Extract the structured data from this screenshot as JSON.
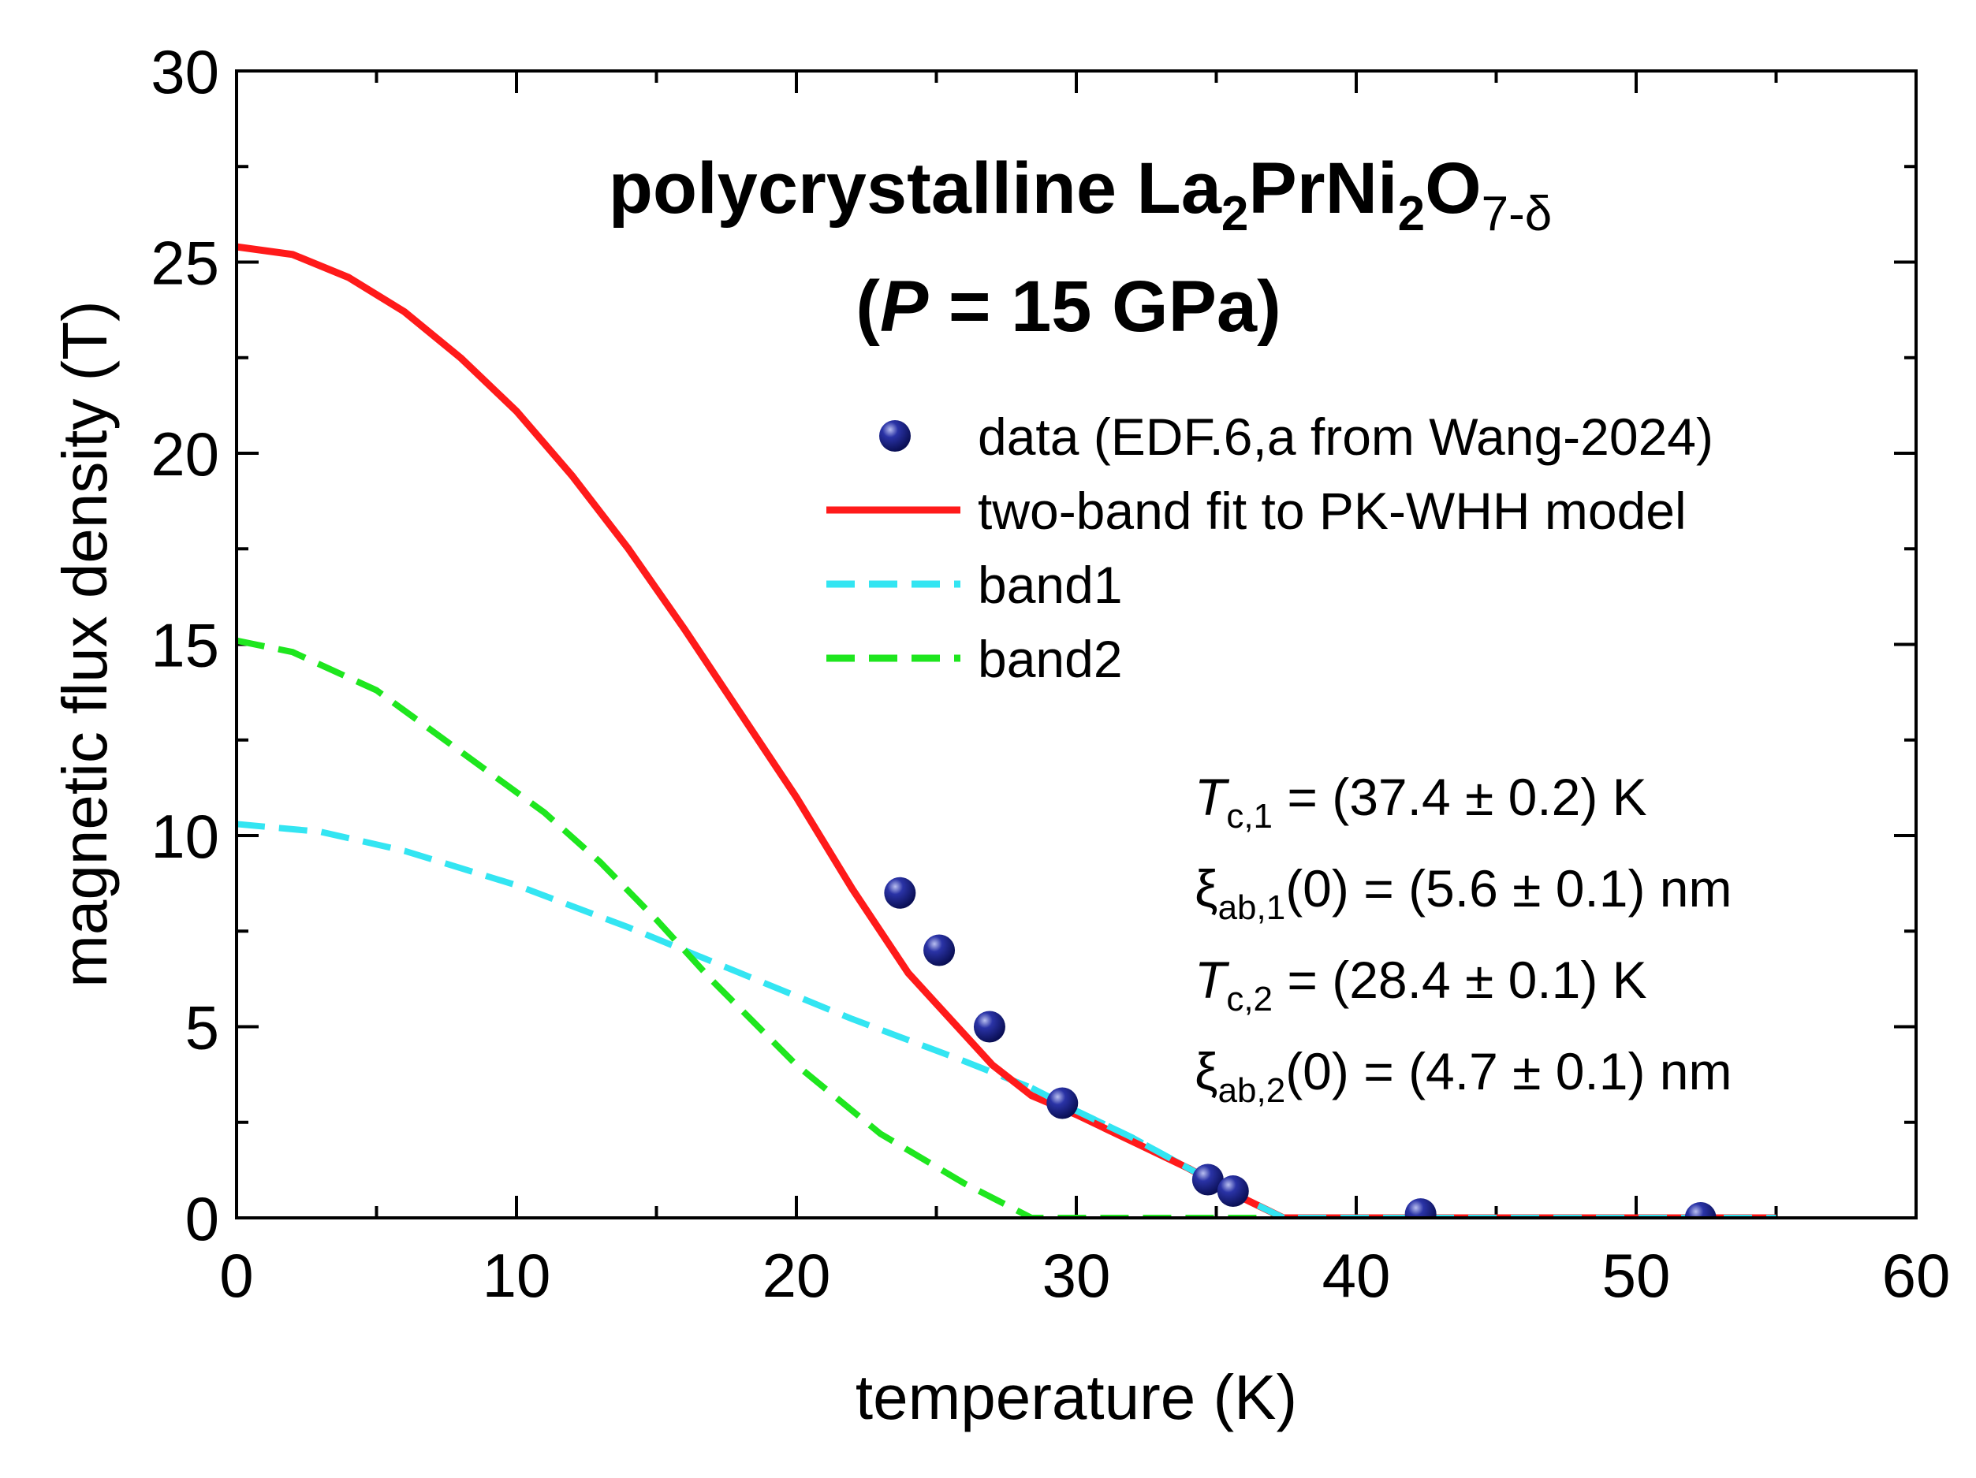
{
  "chart_data": {
    "type": "line",
    "title": {
      "line1_prefix": "polycrystalline La",
      "line1_sub1": "2",
      "line1_mid1": "PrNi",
      "line1_sub2": "2",
      "line1_mid2": "O",
      "line1_sub3": "7-δ",
      "line2_open": "(",
      "line2_p": "P",
      "line2_rest": " = 15 GPa)"
    },
    "xlabel": "temperature (K)",
    "ylabel": "magnetic flux density (T)",
    "xlim": [
      0,
      60
    ],
    "ylim": [
      0,
      30
    ],
    "x_ticks": [
      0,
      10,
      20,
      30,
      40,
      50,
      60
    ],
    "y_ticks": [
      0,
      5,
      10,
      15,
      20,
      25,
      30
    ],
    "legend": {
      "position": "upper-right",
      "entries": [
        {
          "label": "data (EDF.6,a from Wang-2024)",
          "marker": "circle",
          "color": "#141a7a"
        },
        {
          "label": "two-band fit to PK-WHH model",
          "style": "solid",
          "color": "#ff1a1a"
        },
        {
          "label": "band1",
          "style": "dashed",
          "color": "#33e5f2"
        },
        {
          "label": "band2",
          "style": "dashed",
          "color": "#1ee61e"
        }
      ]
    },
    "parameters": {
      "tc1": {
        "sym": "T",
        "sub": "c,1",
        "value": " = (37.4 ± 0.2) K"
      },
      "xi1": {
        "sym": "ξ",
        "sub": "ab,1",
        "value": "(0) = (5.6 ± 0.1) nm"
      },
      "tc2": {
        "sym": "T",
        "sub": "c,2",
        "value": " = (28.4 ± 0.1) K"
      },
      "xi2": {
        "sym": "ξ",
        "sub": "ab,2",
        "value": "(0) = (4.7 ± 0.1) nm"
      }
    },
    "series": [
      {
        "name": "data (EDF.6,a from Wang-2024)",
        "kind": "scatter",
        "color": "#141a7a",
        "points": [
          [
            23.7,
            8.5
          ],
          [
            25.1,
            7.0
          ],
          [
            26.9,
            5.0
          ],
          [
            29.5,
            3.0
          ],
          [
            34.7,
            1.0
          ],
          [
            35.6,
            0.7
          ],
          [
            42.3,
            0.1
          ],
          [
            52.3,
            0.0
          ]
        ]
      },
      {
        "name": "two-band fit to PK-WHH model",
        "kind": "line",
        "color": "#ff1a1a",
        "points": [
          [
            0,
            25.4
          ],
          [
            2,
            25.2
          ],
          [
            4,
            24.6
          ],
          [
            6,
            23.7
          ],
          [
            8,
            22.5
          ],
          [
            10,
            21.1
          ],
          [
            12,
            19.4
          ],
          [
            14,
            17.5
          ],
          [
            16,
            15.4
          ],
          [
            18,
            13.2
          ],
          [
            20,
            11.0
          ],
          [
            22,
            8.6
          ],
          [
            24,
            6.4
          ],
          [
            26,
            4.8
          ],
          [
            27,
            4.0
          ],
          [
            28.4,
            3.2
          ],
          [
            30,
            2.7
          ],
          [
            32,
            2.0
          ],
          [
            34,
            1.3
          ],
          [
            36,
            0.5
          ],
          [
            37.4,
            0.0
          ],
          [
            45,
            0.0
          ],
          [
            55,
            0.0
          ]
        ]
      },
      {
        "name": "band1",
        "kind": "line",
        "color": "#33e5f2",
        "points": [
          [
            0,
            10.3
          ],
          [
            3,
            10.1
          ],
          [
            6,
            9.6
          ],
          [
            10,
            8.7
          ],
          [
            14,
            7.6
          ],
          [
            18,
            6.4
          ],
          [
            22,
            5.2
          ],
          [
            26,
            4.1
          ],
          [
            28.4,
            3.4
          ],
          [
            30,
            2.8
          ],
          [
            32,
            2.1
          ],
          [
            34,
            1.3
          ],
          [
            36,
            0.5
          ],
          [
            37.4,
            0.0
          ],
          [
            45,
            0.0
          ],
          [
            55,
            0.0
          ]
        ]
      },
      {
        "name": "band2",
        "kind": "line",
        "color": "#1ee61e",
        "points": [
          [
            0,
            15.1
          ],
          [
            2,
            14.8
          ],
          [
            5,
            13.8
          ],
          [
            8,
            12.2
          ],
          [
            11,
            10.6
          ],
          [
            13,
            9.3
          ],
          [
            15,
            7.8
          ],
          [
            17,
            6.2
          ],
          [
            20,
            4.0
          ],
          [
            23,
            2.2
          ],
          [
            26,
            0.9
          ],
          [
            28.4,
            0.0
          ],
          [
            40,
            0.0
          ],
          [
            55,
            0.0
          ]
        ]
      }
    ]
  }
}
